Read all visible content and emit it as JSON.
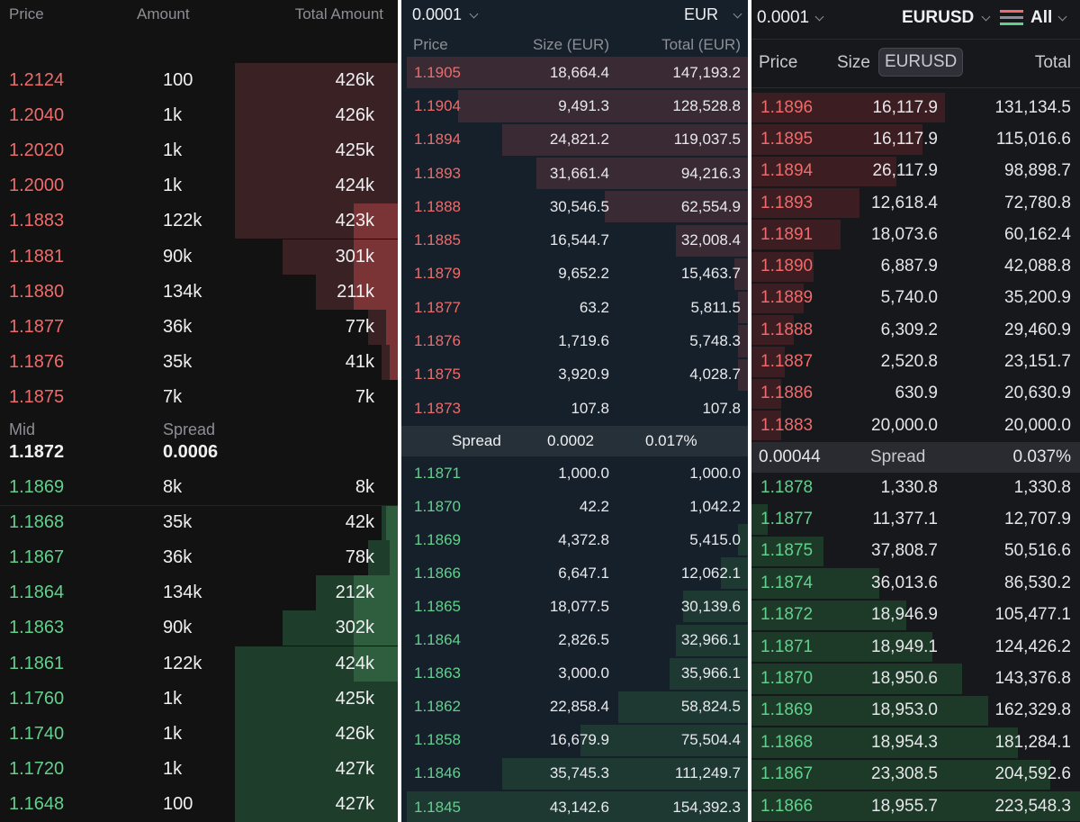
{
  "panel1": {
    "headers": {
      "price": "Price",
      "amount": "Amount",
      "total": "Total Amount"
    },
    "asks": [
      {
        "price": "1.2124",
        "amount": "100",
        "total": "426k",
        "depth": 0.41
      },
      {
        "price": "1.2040",
        "amount": "1k",
        "total": "426k",
        "depth": 0.41
      },
      {
        "price": "1.2020",
        "amount": "1k",
        "total": "425k",
        "depth": 0.41
      },
      {
        "price": "1.2000",
        "amount": "1k",
        "total": "424k",
        "depth": 0.41
      },
      {
        "price": "1.1883",
        "amount": "122k",
        "total": "423k",
        "depth": 0.41
      },
      {
        "price": "1.1881",
        "amount": "90k",
        "total": "301k",
        "depth": 0.29
      },
      {
        "price": "1.1880",
        "amount": "134k",
        "total": "211k",
        "depth": 0.205
      },
      {
        "price": "1.1877",
        "amount": "36k",
        "total": "77k",
        "depth": 0.075
      },
      {
        "price": "1.1876",
        "amount": "35k",
        "total": "41k",
        "depth": 0.04
      },
      {
        "price": "1.1875",
        "amount": "7k",
        "total": "7k",
        "depth": 0.0
      }
    ],
    "ask_overlay_depth": [
      0.0,
      0.0,
      0.0,
      0.0,
      0.11,
      0.11,
      0.11,
      0.03,
      0.02,
      0.0
    ],
    "mid": {
      "label": "Mid",
      "value": "1.1872",
      "spread_label": "Spread",
      "spread_value": "0.0006"
    },
    "bids": [
      {
        "price": "1.1869",
        "amount": "8k",
        "total": "8k",
        "depth": 0.0
      },
      {
        "price": "1.1868",
        "amount": "35k",
        "total": "42k",
        "depth": 0.04
      },
      {
        "price": "1.1867",
        "amount": "36k",
        "total": "78k",
        "depth": 0.075
      },
      {
        "price": "1.1864",
        "amount": "134k",
        "total": "212k",
        "depth": 0.205
      },
      {
        "price": "1.1863",
        "amount": "90k",
        "total": "302k",
        "depth": 0.29
      },
      {
        "price": "1.1861",
        "amount": "122k",
        "total": "424k",
        "depth": 0.41
      },
      {
        "price": "1.1760",
        "amount": "1k",
        "total": "425k",
        "depth": 0.41
      },
      {
        "price": "1.1740",
        "amount": "1k",
        "total": "426k",
        "depth": 0.41
      },
      {
        "price": "1.1720",
        "amount": "1k",
        "total": "427k",
        "depth": 0.41
      },
      {
        "price": "1.1648",
        "amount": "100",
        "total": "427k",
        "depth": 0.41
      }
    ],
    "bid_overlay_depth": [
      0.0,
      0.03,
      0.02,
      0.11,
      0.11,
      0.11,
      0.0,
      0.0,
      0.0,
      0.0
    ]
  },
  "panel2": {
    "tick": "0.0001",
    "currency": "EUR",
    "headers": {
      "price": "Price",
      "size": "Size (EUR)",
      "total": "Total (EUR)"
    },
    "asks": [
      {
        "price": "1.1905",
        "size": "18,664.4",
        "total": "147,193.2",
        "depth": 1.0
      },
      {
        "price": "1.1904",
        "size": "9,491.3",
        "total": "128,528.8",
        "depth": 0.85
      },
      {
        "price": "1.1894",
        "size": "24,821.2",
        "total": "119,037.5",
        "depth": 0.72
      },
      {
        "price": "1.1893",
        "size": "31,661.4",
        "total": "94,216.3",
        "depth": 0.62
      },
      {
        "price": "1.1888",
        "size": "30,546.5",
        "total": "62,554.9",
        "depth": 0.42
      },
      {
        "price": "1.1885",
        "size": "16,544.7",
        "total": "32,008.4",
        "depth": 0.21
      },
      {
        "price": "1.1879",
        "size": "9,652.2",
        "total": "15,463.7",
        "depth": 0.04
      },
      {
        "price": "1.1877",
        "size": "63.2",
        "total": "5,811.5",
        "depth": 0.03
      },
      {
        "price": "1.1876",
        "size": "1,719.6",
        "total": "5,748.3",
        "depth": 0.03
      },
      {
        "price": "1.1875",
        "size": "3,920.9",
        "total": "4,028.7",
        "depth": 0.03
      },
      {
        "price": "1.1873",
        "size": "107.8",
        "total": "107.8",
        "depth": 0.0
      }
    ],
    "spread": {
      "label": "Spread",
      "value": "0.0002",
      "percent": "0.017%"
    },
    "bids": [
      {
        "price": "1.1871",
        "size": "1,000.0",
        "total": "1,000.0",
        "depth": 0.0
      },
      {
        "price": "1.1870",
        "size": "42.2",
        "total": "1,042.2",
        "depth": 0.0
      },
      {
        "price": "1.1869",
        "size": "4,372.8",
        "total": "5,415.0",
        "depth": 0.03
      },
      {
        "price": "1.1866",
        "size": "6,647.1",
        "total": "12,062.1",
        "depth": 0.08
      },
      {
        "price": "1.1865",
        "size": "18,077.5",
        "total": "30,139.6",
        "depth": 0.19
      },
      {
        "price": "1.1864",
        "size": "2,826.5",
        "total": "32,966.1",
        "depth": 0.21
      },
      {
        "price": "1.1863",
        "size": "3,000.0",
        "total": "35,966.1",
        "depth": 0.23
      },
      {
        "price": "1.1862",
        "size": "22,858.4",
        "total": "58,824.5",
        "depth": 0.38
      },
      {
        "price": "1.1858",
        "size": "16,679.9",
        "total": "75,504.4",
        "depth": 0.49
      },
      {
        "price": "1.1846",
        "size": "35,745.3",
        "total": "111,249.7",
        "depth": 0.72
      },
      {
        "price": "1.1845",
        "size": "43,142.6",
        "total": "154,392.3",
        "depth": 1.0
      }
    ]
  },
  "panel3": {
    "tick": "0.0001",
    "symbol": "EURUSD",
    "filter": "All",
    "headers": {
      "price": "Price",
      "size": "Size",
      "size_unit": "EURUSD",
      "total": "Total"
    },
    "asks": [
      {
        "price": "1.1896",
        "size": "16,117.9",
        "total": "131,134.5",
        "depth": 0.59
      },
      {
        "price": "1.1895",
        "size": "16,117.9",
        "total": "115,016.6",
        "depth": 0.52
      },
      {
        "price": "1.1894",
        "size": "26,117.9",
        "total": "98,898.7",
        "depth": 0.44
      },
      {
        "price": "1.1893",
        "size": "12,618.4",
        "total": "72,780.8",
        "depth": 0.33
      },
      {
        "price": "1.1891",
        "size": "18,073.6",
        "total": "60,162.4",
        "depth": 0.27
      },
      {
        "price": "1.1890",
        "size": "6,887.9",
        "total": "42,088.8",
        "depth": 0.19
      },
      {
        "price": "1.1889",
        "size": "5,740.0",
        "total": "35,200.9",
        "depth": 0.16
      },
      {
        "price": "1.1888",
        "size": "6,309.2",
        "total": "29,460.9",
        "depth": 0.13
      },
      {
        "price": "1.1887",
        "size": "2,520.8",
        "total": "23,151.7",
        "depth": 0.1
      },
      {
        "price": "1.1886",
        "size": "630.9",
        "total": "20,630.9",
        "depth": 0.09
      },
      {
        "price": "1.1883",
        "size": "20,000.0",
        "total": "20,000.0",
        "depth": 0.09
      }
    ],
    "spread": {
      "value": "0.00044",
      "label": "Spread",
      "percent": "0.037%"
    },
    "bids": [
      {
        "price": "1.1878",
        "size": "1,330.8",
        "total": "1,330.8",
        "depth": 0.0
      },
      {
        "price": "1.1877",
        "size": "11,377.1",
        "total": "12,707.9",
        "depth": 0.05
      },
      {
        "price": "1.1875",
        "size": "37,808.7",
        "total": "50,516.6",
        "depth": 0.22
      },
      {
        "price": "1.1874",
        "size": "36,013.6",
        "total": "86,530.2",
        "depth": 0.39
      },
      {
        "price": "1.1872",
        "size": "18,946.9",
        "total": "105,477.1",
        "depth": 0.47
      },
      {
        "price": "1.1871",
        "size": "18,949.1",
        "total": "124,426.2",
        "depth": 0.55
      },
      {
        "price": "1.1870",
        "size": "18,950.6",
        "total": "143,376.8",
        "depth": 0.64
      },
      {
        "price": "1.1869",
        "size": "18,953.0",
        "total": "162,329.8",
        "depth": 0.72
      },
      {
        "price": "1.1868",
        "size": "18,954.3",
        "total": "181,284.1",
        "depth": 0.81
      },
      {
        "price": "1.1867",
        "size": "23,308.5",
        "total": "204,592.6",
        "depth": 0.91
      },
      {
        "price": "1.1866",
        "size": "18,955.7",
        "total": "223,548.3",
        "depth": 1.0
      }
    ]
  },
  "colors": {
    "ask_text": "#ef6b6b",
    "bid_text": "#62d08d",
    "ask_bar_p1": "#3a2224",
    "ask_overlay_p1": "#7a3436",
    "bid_bar_p1": "#1f3d2b",
    "bid_overlay_p1": "#2f5e3f",
    "ask_bar_p2": "#3a2a33",
    "bid_bar_p2": "#1e3832",
    "ask_bar_p3": "#3c1d21",
    "bid_bar_p3": "#1c3a27"
  }
}
